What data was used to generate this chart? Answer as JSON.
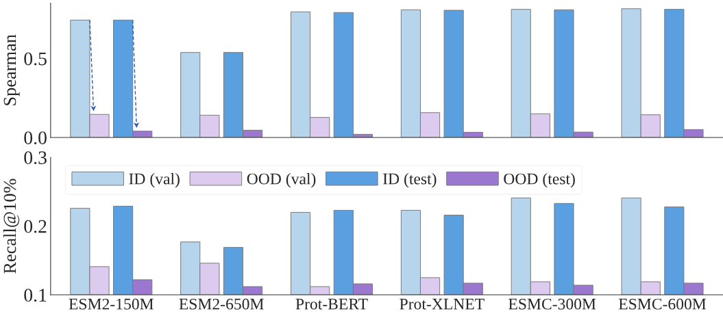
{
  "chart_data": [
    {
      "type": "bar",
      "ylabel": "Spearman",
      "categories": [
        null,
        null,
        null,
        null,
        null,
        null
      ],
      "series": [
        {
          "color": "#b6d4ec",
          "values": [
            0.743,
            0.538,
            0.795,
            0.808,
            0.811,
            0.815
          ]
        },
        {
          "color": "#dccbef",
          "values": [
            0.146,
            0.141,
            0.127,
            0.157,
            0.15,
            0.144
          ]
        },
        {
          "color": "#5a9fdf",
          "values": [
            0.743,
            0.538,
            0.791,
            0.805,
            0.808,
            0.811
          ]
        },
        {
          "color": "#9b77cf",
          "values": [
            0.04,
            0.046,
            0.02,
            0.033,
            0.034,
            0.05
          ]
        }
      ],
      "ylim": [
        0,
        0.85
      ],
      "yticks": [
        {
          "value": 0,
          "label": "0.0"
        },
        0.5
      ],
      "tick_labels": "y",
      "grid": false
    },
    {
      "type": "bar",
      "ylabel": "Recall@10%",
      "categories": [
        "ESM2-150M",
        "ESM2-650M",
        "Prot-BERT",
        "Prot-XLNET",
        "ESMC-300M",
        "ESMC-600M"
      ],
      "series": [
        {
          "name": "ID (val)",
          "color": "#b6d4ec",
          "values": [
            0.226,
            0.177,
            0.22,
            0.223,
            0.241,
            0.241
          ]
        },
        {
          "name": "OOD (val)",
          "color": "#dccbef",
          "values": [
            0.141,
            0.146,
            0.112,
            0.125,
            0.119,
            0.119
          ]
        },
        {
          "name": "ID (test)",
          "color": "#5a9fdf",
          "values": [
            0.229,
            0.169,
            0.223,
            0.216,
            0.233,
            0.228
          ]
        },
        {
          "name": "OOD (test)",
          "color": "#9b77cf",
          "values": [
            0.122,
            0.112,
            0.116,
            0.117,
            0.114,
            0.117
          ]
        }
      ],
      "ylim": [
        0.1,
        0.3
      ],
      "yticks": [
        0.1,
        0.2,
        0.3
      ],
      "legend": "top left",
      "grid": false
    }
  ]
}
